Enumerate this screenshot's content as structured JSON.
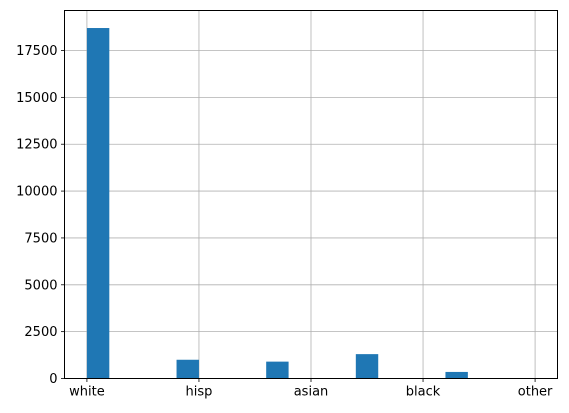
{
  "chart_data": {
    "type": "bar",
    "title": "",
    "xlabel": "",
    "ylabel": "",
    "categories": [
      "white",
      "hisp",
      "asian",
      "black",
      "other"
    ],
    "bins": [
      {
        "start": 0.0,
        "end": 0.4,
        "value": 18700
      },
      {
        "start": 0.4,
        "end": 0.8,
        "value": 0
      },
      {
        "start": 0.8,
        "end": 1.2,
        "value": 0
      },
      {
        "start": 1.2,
        "end": 1.6,
        "value": 0
      },
      {
        "start": 1.6,
        "end": 2.0,
        "value": 1000
      },
      {
        "start": 2.0,
        "end": 2.4,
        "value": 0
      },
      {
        "start": 2.4,
        "end": 2.8,
        "value": 0
      },
      {
        "start": 2.8,
        "end": 3.2,
        "value": 0
      },
      {
        "start": 3.2,
        "end": 3.6,
        "value": 900
      },
      {
        "start": 3.6,
        "end": 4.0,
        "value": 0
      },
      {
        "start": 4.0,
        "end": 4.4,
        "value": 0
      },
      {
        "start": 4.4,
        "end": 4.8,
        "value": 0
      },
      {
        "start": 4.8,
        "end": 5.2,
        "value": 1300
      },
      {
        "start": 5.2,
        "end": 5.6,
        "value": 0
      },
      {
        "start": 5.6,
        "end": 6.0,
        "value": 0
      },
      {
        "start": 6.0,
        "end": 6.4,
        "value": 0
      },
      {
        "start": 6.4,
        "end": 6.8,
        "value": 350
      }
    ],
    "xticks": [
      {
        "value": 0,
        "label": "white"
      },
      {
        "value": 2,
        "label": "hisp"
      },
      {
        "value": 4,
        "label": "asian"
      },
      {
        "value": 6,
        "label": "black"
      },
      {
        "value": 8,
        "label": "other"
      }
    ],
    "yticks": [
      0,
      2500,
      5000,
      7500,
      10000,
      12500,
      15000,
      17500
    ],
    "xlim": [
      -0.4,
      8.4
    ],
    "ylim": [
      0,
      19635
    ],
    "grid": true,
    "colors": {
      "bar": "#1f77b4",
      "grid": "#b0b0b0",
      "axis": "#000000"
    }
  }
}
